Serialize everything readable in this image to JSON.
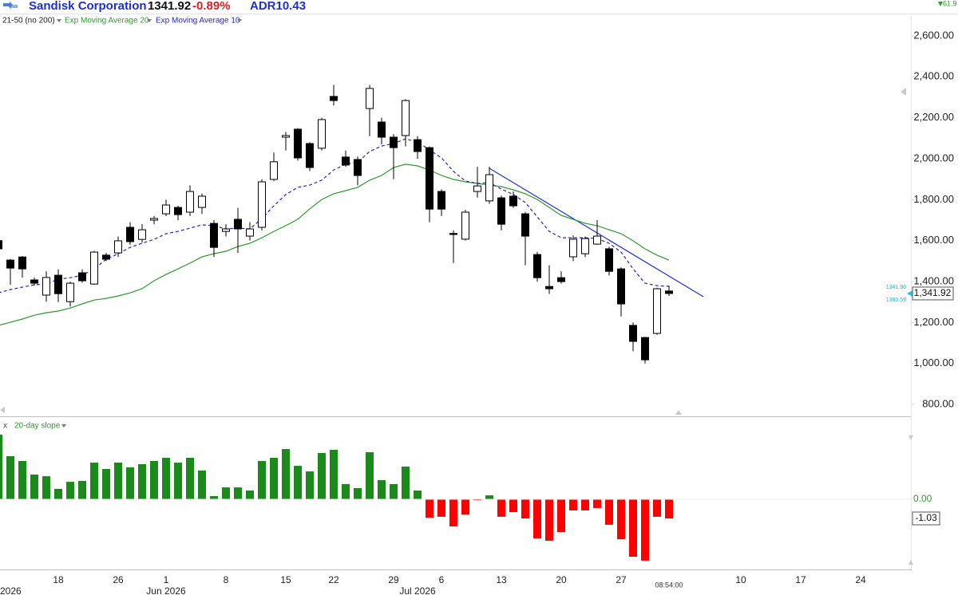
{
  "header": {
    "symbol": "Sandisk Corporation",
    "price": "1341.92",
    "change": "-0.89%",
    "adr": "ADR10.43",
    "corner": "61.9"
  },
  "chart_data": [
    {
      "type": "candlestick",
      "title": "Sandisk Corporation",
      "indicator": "21-50 (no 200)",
      "time_label": "08:54:00",
      "categories": [
        null,
        null,
        null,
        null,
        null,
        "18",
        null,
        null,
        null,
        null,
        "26",
        null,
        null,
        null,
        "1",
        null,
        null,
        null,
        null,
        "8",
        null,
        null,
        null,
        null,
        "15",
        null,
        null,
        null,
        "22",
        null,
        null,
        null,
        null,
        "29",
        null,
        null,
        null,
        "6",
        null,
        null,
        null,
        null,
        "13",
        null,
        null,
        null,
        null,
        "20",
        null,
        null,
        null,
        null,
        "27",
        null,
        null,
        null,
        null,
        null,
        null,
        null,
        null,
        null,
        "10",
        null,
        null,
        null,
        null,
        "17",
        null,
        null,
        null,
        null,
        "24",
        null,
        null,
        null,
        null
      ],
      "month_labels": [
        "2026",
        null,
        null,
        null,
        null,
        null,
        null,
        null,
        null,
        null,
        null,
        null,
        null,
        null,
        "Jun 2026",
        null,
        null,
        null,
        null,
        null,
        null,
        null,
        null,
        null,
        null,
        null,
        null,
        null,
        null,
        null,
        null,
        null,
        null,
        null,
        null,
        "Jul 2026",
        null,
        null,
        null,
        null,
        null,
        null,
        null,
        null,
        null,
        null,
        null,
        null,
        null,
        null,
        null,
        null,
        null,
        null,
        null,
        null,
        null,
        null,
        null,
        null,
        null,
        null,
        null,
        null,
        null,
        null,
        null,
        null,
        null,
        null,
        null,
        null,
        null,
        null,
        null,
        null,
        null
      ],
      "open": [
        1600,
        1505,
        1520,
        1408,
        1334,
        1431,
        1302,
        1443,
        1388,
        1529,
        1540,
        1665,
        1606,
        1700,
        1731,
        1762,
        1739,
        1762,
        1684,
        1645,
        1704,
        1622,
        1665,
        1899,
        2105,
        2144,
        2074,
        2051,
        2304,
        2008,
        1996,
        2245,
        2179,
        2105,
        2113,
        2093,
        2054,
        1840,
        1635,
        1607,
        1840,
        1794,
        1809,
        1817,
        1731,
        1532,
        1376,
        1419,
        1521,
        1536,
        1583,
        1560,
        1462,
        1186,
        1127,
        1147,
        1354,
        null,
        null,
        null,
        null,
        null,
        null,
        null,
        null,
        null,
        null,
        null,
        null,
        null,
        null,
        null,
        null,
        null,
        null,
        null,
        null
      ],
      "high": [
        1610,
        1510,
        1525,
        1420,
        1450,
        1460,
        1400,
        1460,
        1550,
        1540,
        1620,
        1690,
        1680,
        1720,
        1800,
        1770,
        1870,
        1830,
        1700,
        1680,
        1760,
        1690,
        1900,
        2030,
        2130,
        2150,
        2080,
        2200,
        2360,
        2040,
        2010,
        2360,
        2200,
        2120,
        2290,
        2110,
        2060,
        1850,
        1650,
        1750,
        1960,
        1960,
        1820,
        1840,
        1740,
        1545,
        1480,
        1450,
        1625,
        1620,
        1700,
        1570,
        1470,
        1200,
        1130,
        1370,
        1380,
        null,
        null,
        null,
        null,
        null,
        null,
        null,
        null,
        null,
        null,
        null,
        null,
        null,
        null,
        null,
        null,
        null,
        null,
        null,
        null
      ],
      "low": [
        1550,
        1385,
        1420,
        1380,
        1302,
        1300,
        1278,
        1395,
        1385,
        1500,
        1520,
        1580,
        1590,
        1680,
        1720,
        1700,
        1720,
        1730,
        1520,
        1620,
        1540,
        1600,
        1650,
        1890,
        2040,
        1990,
        1940,
        2040,
        2260,
        1960,
        1870,
        2110,
        2070,
        1900,
        2060,
        2000,
        1690,
        1720,
        1490,
        1600,
        1810,
        1780,
        1650,
        1760,
        1480,
        1400,
        1340,
        1390,
        1500,
        1520,
        1580,
        1430,
        1230,
        1060,
        1000,
        1140,
        1330,
        null,
        null,
        null,
        null,
        null,
        null,
        null,
        null,
        null,
        null,
        null,
        null,
        null,
        null,
        null,
        null,
        null,
        null,
        null,
        null
      ],
      "close": [
        1560,
        1466,
        1462,
        1392,
        1420,
        1341,
        1392,
        1404,
        1544,
        1509,
        1599,
        1595,
        1653,
        1708,
        1774,
        1727,
        1840,
        1817,
        1567,
        1657,
        1657,
        1657,
        1887,
        1985,
        2113,
        2004,
        1957,
        2191,
        2284,
        1969,
        1918,
        2343,
        2105,
        2054,
        2284,
        2035,
        1754,
        1754,
        1630,
        1739,
        1867,
        1922,
        1680,
        1770,
        1622,
        1419,
        1365,
        1400,
        1607,
        1610,
        1622,
        1450,
        1291,
        1108,
        1018,
        1365,
        1341.92,
        null,
        null,
        null,
        null,
        null,
        null,
        null,
        null,
        null,
        null,
        null,
        null,
        null,
        null,
        null,
        null,
        null,
        null,
        null,
        null
      ],
      "up_color": "#ffffff",
      "down_color": "#000000",
      "outline_color": "#000000",
      "series": [
        {
          "name": "Exp Moving Average 20",
          "color": "#2e9a2e",
          "dash": false,
          "values": [
            1186,
            1201,
            1217,
            1236,
            1248,
            1256,
            1271,
            1291,
            1310,
            1318,
            1330,
            1345,
            1365,
            1404,
            1435,
            1462,
            1490,
            1521,
            1536,
            1548,
            1571,
            1587,
            1614,
            1645,
            1673,
            1704,
            1755,
            1801,
            1829,
            1844,
            1860,
            1895,
            1918,
            1957,
            1973,
            1965,
            1945,
            1918,
            1899,
            1887,
            1879,
            1871,
            1864,
            1848,
            1829,
            1801,
            1762,
            1723,
            1704,
            1684,
            1673,
            1653,
            1634,
            1599,
            1560,
            1529,
            1505,
            null,
            null,
            null,
            null,
            null,
            null,
            null,
            null,
            null,
            null,
            null,
            null,
            null,
            null,
            null,
            null,
            null,
            null,
            null,
            null
          ]
        },
        {
          "name": "Exp Moving Average 10",
          "color": "#2424c8",
          "dash": true,
          "values": [
            1345,
            1361,
            1373,
            1384,
            1388,
            1412,
            1419,
            1431,
            1462,
            1509,
            1536,
            1567,
            1587,
            1606,
            1634,
            1645,
            1661,
            1677,
            1673,
            1657,
            1661,
            1657,
            1708,
            1770,
            1825,
            1860,
            1871,
            1895,
            1945,
            1973,
            1984,
            2035,
            2062,
            2074,
            2097,
            2082,
            2043,
            2004,
            1938,
            1891,
            1879,
            1883,
            1852,
            1825,
            1786,
            1716,
            1645,
            1614,
            1614,
            1614,
            1610,
            1587,
            1544,
            1462,
            1392,
            1380,
            1377,
            null,
            null,
            null,
            null,
            null,
            null,
            null,
            null,
            null,
            null,
            null,
            null,
            null,
            null,
            null,
            null,
            null,
            null,
            null,
            null
          ]
        }
      ],
      "average_labels": [
        "1341.96",
        "1380.59"
      ],
      "last_label": "1,341.92",
      "ylim": [
        742,
        2697
      ],
      "yticks": [
        {
          "value": 800,
          "label": "800.00"
        },
        {
          "value": 1000,
          "label": "1,000.00"
        },
        {
          "value": 1200,
          "label": "1,200.00"
        },
        {
          "value": 1400,
          "label": "1,400.00"
        },
        {
          "value": 1600,
          "label": "1,600.00"
        },
        {
          "value": 1800,
          "label": "1,800.00"
        },
        {
          "value": 2000,
          "label": "2,000.00"
        },
        {
          "value": 2200,
          "label": "2,200.00"
        },
        {
          "value": 2400,
          "label": "2,400.00"
        },
        {
          "value": 2600,
          "label": "2,600.00"
        }
      ]
    },
    {
      "type": "bar",
      "title": "20-day slope",
      "remove_label": "x",
      "pos_color": "#1a8a1a",
      "neg_color": "#ff0000",
      "values": [
        3.48,
        2.32,
        2.06,
        1.33,
        1.24,
        0.56,
        0.94,
        0.99,
        1.97,
        1.63,
        1.97,
        1.72,
        1.89,
        2.06,
        2.23,
        1.97,
        2.23,
        1.55,
        0.17,
        0.64,
        0.64,
        0.47,
        2.06,
        2.23,
        2.7,
        1.8,
        1.5,
        2.49,
        2.66,
        0.82,
        0.6,
        2.53,
        1.03,
        0.82,
        1.76,
        0.47,
        -0.99,
        -0.94,
        -1.46,
        -0.82,
        -0.05,
        0.21,
        -0.94,
        -0.69,
        -1.03,
        -2.1,
        -2.23,
        -1.76,
        -0.6,
        -0.6,
        -0.47,
        -1.37,
        -2.15,
        -3.09,
        -3.3,
        -0.94,
        -1.03,
        null,
        null,
        null,
        null,
        null,
        null,
        null,
        null,
        null,
        null,
        null,
        null,
        null,
        null,
        null,
        null,
        null,
        null,
        null,
        null
      ],
      "last_label": "-1.03",
      "ylim": [
        -3.69,
        4.29
      ],
      "yticks": [
        {
          "value": 0,
          "label": "0.00"
        }
      ]
    }
  ]
}
